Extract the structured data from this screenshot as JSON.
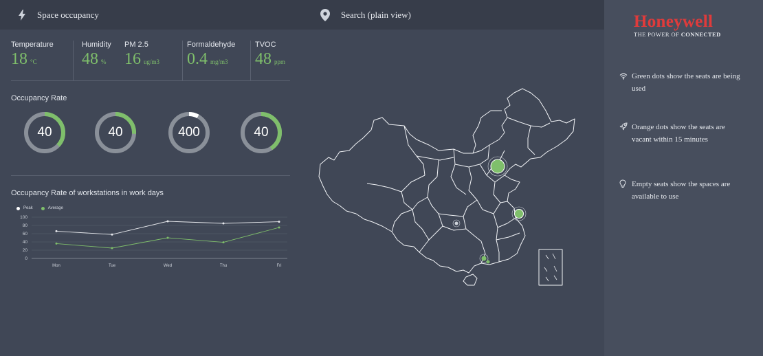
{
  "left": {
    "header_title": "Space occupancy",
    "environment": [
      {
        "label": "Temperature",
        "value": "18",
        "unit": "°C"
      },
      {
        "label": "Humidity",
        "value": "48",
        "unit": "%"
      },
      {
        "label": "PM 2.5",
        "value": "16",
        "unit": "ug/m3"
      },
      {
        "label": "Formaldehyde",
        "value": "0.4",
        "unit": "mg/m3"
      },
      {
        "label": "TVOC",
        "value": "48",
        "unit": "ppm"
      }
    ],
    "occupancy_title": "Occupancy Rate",
    "donuts": [
      {
        "label": "40",
        "fraction": 0.37
      },
      {
        "label": "40",
        "fraction": 0.26
      },
      {
        "label": "400",
        "fraction": 0.08
      },
      {
        "label": "40",
        "fraction": 0.41
      }
    ],
    "workdays_title": "Occupancy Rate of workstations in work days"
  },
  "chart_data": {
    "type": "line",
    "title": "Occupancy Rate of workstations in work days",
    "categories": [
      "Mon",
      "Tue",
      "Wed",
      "Thu",
      "Fri"
    ],
    "series": [
      {
        "name": "Peak",
        "values": [
          66,
          58,
          90,
          85,
          89
        ],
        "color": "#e6e8ec"
      },
      {
        "name": "Average",
        "values": [
          36,
          25,
          50,
          39,
          75
        ],
        "color": "#7fbf6b"
      }
    ],
    "yticks": [
      "100",
      "80",
      "60",
      "40",
      "20",
      "0"
    ],
    "ylim": [
      0,
      100
    ],
    "legend": "top-left",
    "grid": true
  },
  "map": {
    "search_label": "Search (plain view)"
  },
  "right": {
    "brand": "Honeywell",
    "tagline_prefix": "THE POWER OF",
    "tagline_bold": "CONNECTED",
    "notes": [
      {
        "icon": "wifi-icon",
        "text": "Green dots show the seats are being used"
      },
      {
        "icon": "rocket-icon",
        "text": "Orange dots show the seats are vacant within 15 minutes"
      },
      {
        "icon": "lightbulb-icon",
        "text": "Empty seats show the spaces are available to use"
      }
    ]
  },
  "colors": {
    "accent": "#7fbf6b",
    "ring_track": "#8a9099",
    "brand_red": "#e03b3b"
  }
}
